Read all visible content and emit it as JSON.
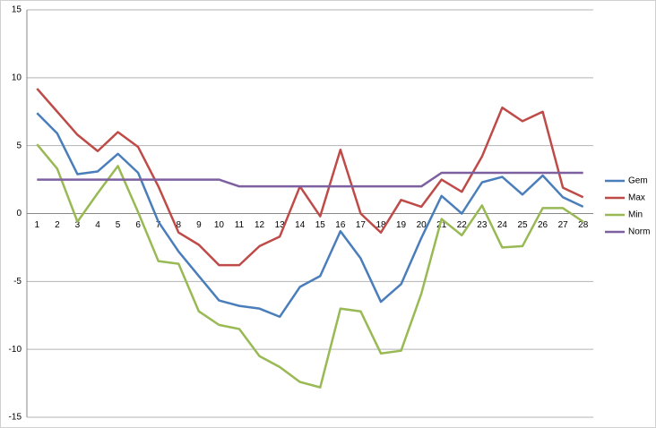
{
  "chart_data": {
    "type": "line",
    "categories": [
      1,
      2,
      3,
      4,
      5,
      6,
      7,
      8,
      9,
      10,
      11,
      12,
      13,
      14,
      15,
      16,
      17,
      18,
      19,
      20,
      21,
      22,
      23,
      24,
      25,
      26,
      27,
      28
    ],
    "series": [
      {
        "name": "Gem",
        "color": "#4a7ebb",
        "values": [
          7.4,
          5.9,
          2.9,
          3.1,
          4.4,
          3.0,
          -0.6,
          -2.8,
          -4.6,
          -6.4,
          -6.8,
          -7.0,
          -7.6,
          -5.4,
          -4.6,
          -1.3,
          -3.3,
          -6.5,
          -5.2,
          -1.8,
          1.3,
          0.0,
          2.3,
          2.7,
          1.4,
          2.8,
          1.2,
          0.5
        ]
      },
      {
        "name": "Max",
        "color": "#be4b48",
        "values": [
          9.2,
          7.5,
          5.8,
          4.6,
          6.0,
          4.9,
          2.0,
          -1.4,
          -2.3,
          -3.8,
          -3.8,
          -2.4,
          -1.7,
          2.0,
          -0.2,
          4.7,
          0.0,
          -1.4,
          1.0,
          0.5,
          2.5,
          1.6,
          4.2,
          7.8,
          6.8,
          7.5,
          1.9,
          1.2
        ]
      },
      {
        "name": "Min",
        "color": "#98b954",
        "values": [
          5.1,
          3.3,
          -0.6,
          1.5,
          3.5,
          0.1,
          -3.5,
          -3.7,
          -7.2,
          -8.2,
          -8.5,
          -10.5,
          -11.3,
          -12.4,
          -12.8,
          -7.0,
          -7.2,
          -10.3,
          -10.1,
          -5.9,
          -0.4,
          -1.6,
          0.6,
          -2.5,
          -2.4,
          0.4,
          0.4,
          -0.6
        ]
      },
      {
        "name": "Norm",
        "color": "#7d60a0",
        "values": [
          2.5,
          2.5,
          2.5,
          2.5,
          2.5,
          2.5,
          2.5,
          2.5,
          2.5,
          2.5,
          2,
          2,
          2,
          2,
          2,
          2,
          2,
          2,
          2,
          2,
          3,
          3,
          3,
          3,
          3,
          3,
          3,
          3
        ]
      }
    ],
    "ylim": [
      -15,
      15
    ],
    "yticks": [
      -15,
      -10,
      -5,
      0,
      5,
      10,
      15
    ],
    "grid": true,
    "legend": "right"
  }
}
